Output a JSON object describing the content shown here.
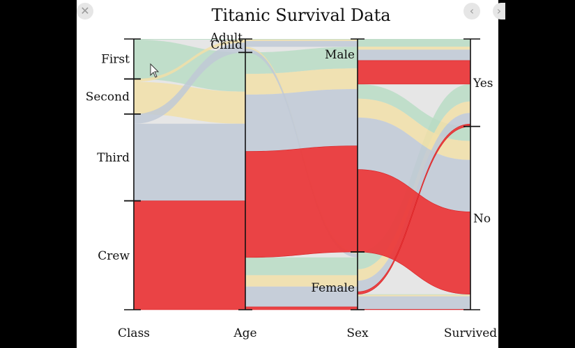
{
  "viewer": {
    "close_glyph": "✕",
    "prev_glyph": "‹",
    "next_glyph": "›"
  },
  "chart_data": {
    "type": "parallel-sets",
    "title": "Titanic Survival Data",
    "dimensions": [
      {
        "name": "Class",
        "categories": [
          "First",
          "Second",
          "Third",
          "Crew"
        ]
      },
      {
        "name": "Age",
        "categories": [
          "Child",
          "Adult"
        ]
      },
      {
        "name": "Sex",
        "categories": [
          "Male",
          "Female"
        ]
      },
      {
        "name": "Survived",
        "categories": [
          "Yes",
          "No"
        ]
      }
    ],
    "highlighted_class": "Crew",
    "colors": {
      "First": "#b9dcc4",
      "Second": "#f1dfa8",
      "Third": "#c0c9d6",
      "Crew": "#ea3a3c",
      "background": "#e6e6e6"
    },
    "records": [
      {
        "Class": "First",
        "Age": "Child",
        "Sex": "Male",
        "Survived": "Yes",
        "count": 5
      },
      {
        "Class": "First",
        "Age": "Child",
        "Sex": "Female",
        "Survived": "Yes",
        "count": 1
      },
      {
        "Class": "First",
        "Age": "Adult",
        "Sex": "Male",
        "Survived": "Yes",
        "count": 57
      },
      {
        "Class": "First",
        "Age": "Adult",
        "Sex": "Male",
        "Survived": "No",
        "count": 118
      },
      {
        "Class": "First",
        "Age": "Adult",
        "Sex": "Female",
        "Survived": "Yes",
        "count": 140
      },
      {
        "Class": "First",
        "Age": "Adult",
        "Sex": "Female",
        "Survived": "No",
        "count": 4
      },
      {
        "Class": "Second",
        "Age": "Child",
        "Sex": "Male",
        "Survived": "Yes",
        "count": 11
      },
      {
        "Class": "Second",
        "Age": "Child",
        "Sex": "Female",
        "Survived": "Yes",
        "count": 13
      },
      {
        "Class": "Second",
        "Age": "Adult",
        "Sex": "Male",
        "Survived": "Yes",
        "count": 14
      },
      {
        "Class": "Second",
        "Age": "Adult",
        "Sex": "Male",
        "Survived": "No",
        "count": 154
      },
      {
        "Class": "Second",
        "Age": "Adult",
        "Sex": "Female",
        "Survived": "Yes",
        "count": 80
      },
      {
        "Class": "Second",
        "Age": "Adult",
        "Sex": "Female",
        "Survived": "No",
        "count": 13
      },
      {
        "Class": "Third",
        "Age": "Child",
        "Sex": "Male",
        "Survived": "Yes",
        "count": 13
      },
      {
        "Class": "Third",
        "Age": "Child",
        "Sex": "Male",
        "Survived": "No",
        "count": 35
      },
      {
        "Class": "Third",
        "Age": "Child",
        "Sex": "Female",
        "Survived": "Yes",
        "count": 14
      },
      {
        "Class": "Third",
        "Age": "Child",
        "Sex": "Female",
        "Survived": "No",
        "count": 17
      },
      {
        "Class": "Third",
        "Age": "Adult",
        "Sex": "Male",
        "Survived": "Yes",
        "count": 75
      },
      {
        "Class": "Third",
        "Age": "Adult",
        "Sex": "Male",
        "Survived": "No",
        "count": 387
      },
      {
        "Class": "Third",
        "Age": "Adult",
        "Sex": "Female",
        "Survived": "Yes",
        "count": 76
      },
      {
        "Class": "Third",
        "Age": "Adult",
        "Sex": "Female",
        "Survived": "No",
        "count": 89
      },
      {
        "Class": "Crew",
        "Age": "Adult",
        "Sex": "Male",
        "Survived": "Yes",
        "count": 192
      },
      {
        "Class": "Crew",
        "Age": "Adult",
        "Sex": "Male",
        "Survived": "No",
        "count": 670
      },
      {
        "Class": "Crew",
        "Age": "Adult",
        "Sex": "Female",
        "Survived": "Yes",
        "count": 20
      },
      {
        "Class": "Crew",
        "Age": "Adult",
        "Sex": "Female",
        "Survived": "No",
        "count": 3
      }
    ]
  }
}
